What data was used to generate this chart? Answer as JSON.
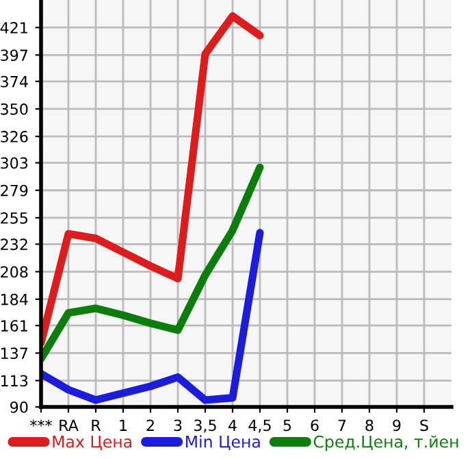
{
  "chart_data": {
    "type": "line",
    "categories": [
      "***",
      "RA",
      "R",
      "1",
      "2",
      "3",
      "3,5",
      "4",
      "4,5",
      "5",
      "6",
      "7",
      "8",
      "9",
      "S"
    ],
    "series": [
      {
        "name": "Max Цена",
        "color": "#dd1c1c",
        "values": [
          146,
          241,
          237,
          225,
          213,
          202,
          398,
          431,
          414,
          null,
          null,
          null,
          null,
          null,
          null
        ]
      },
      {
        "name": "Min Цена",
        "color": "#1c1cdd",
        "values": [
          119,
          105,
          96,
          102,
          108,
          116,
          96,
          98,
          242,
          null,
          null,
          null,
          null,
          null,
          null
        ]
      },
      {
        "name": "Сред.Цена, т.йен",
        "color": "#0a7d0a",
        "values": [
          132,
          172,
          176,
          170,
          163,
          157,
          205,
          244,
          299,
          null,
          null,
          null,
          null,
          null,
          null
        ]
      }
    ],
    "ylim": [
      90,
      445
    ],
    "yticks": [
      90,
      113,
      137,
      161,
      184,
      208,
      232,
      255,
      279,
      303,
      326,
      350,
      374,
      397,
      421
    ],
    "grid": true,
    "legend": "bottom",
    "marker": "none",
    "line_style": "solid"
  }
}
